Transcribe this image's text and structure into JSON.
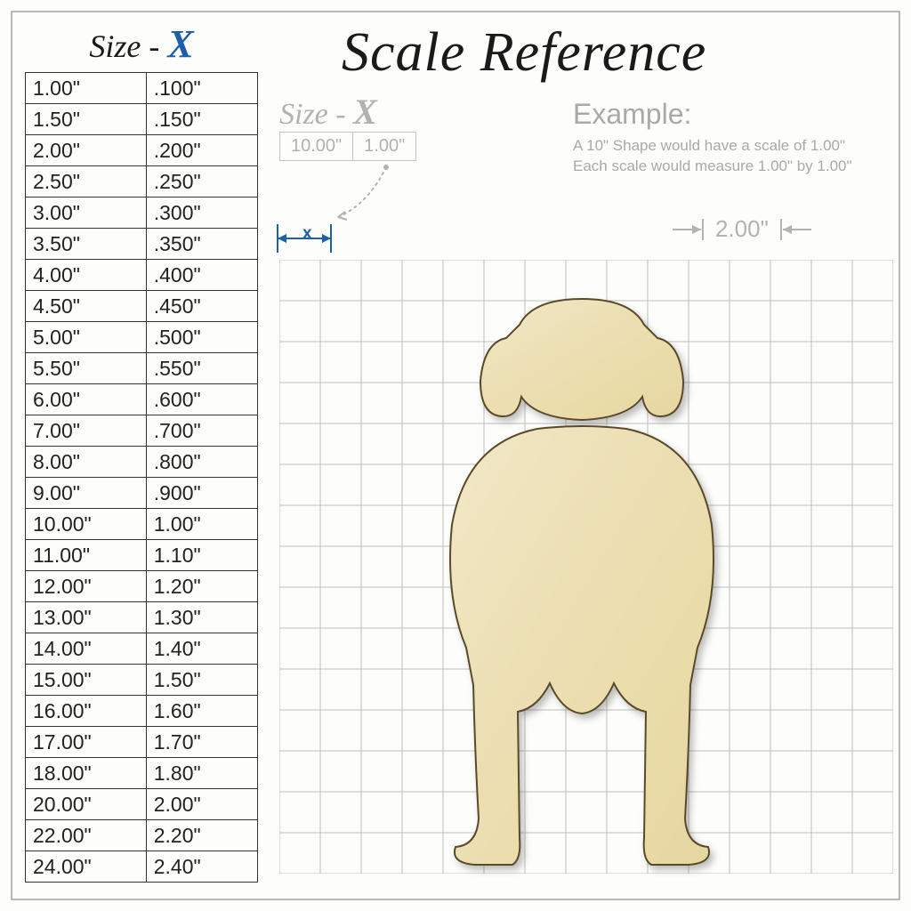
{
  "title": "Scale Reference",
  "size_header": {
    "prefix": "Size - ",
    "x": "X",
    "x_color": "#1e5fa8"
  },
  "sub_size": {
    "prefix": "Size - ",
    "x": "X",
    "color": "#b2b2b2"
  },
  "mini_table": {
    "left": "10.00\"",
    "right": "1.00\""
  },
  "example": {
    "title": "Example:",
    "line1": "A 10\" Shape would have a scale of 1.00\"",
    "line2": "Each scale would measure 1.00\" by 1.00\""
  },
  "x_marker_label": "x",
  "dim2_label": "2.00\"",
  "size_table": {
    "rows": [
      [
        "1.00\"",
        ".100\""
      ],
      [
        "1.50\"",
        ".150\""
      ],
      [
        "2.00\"",
        ".200\""
      ],
      [
        "2.50\"",
        ".250\""
      ],
      [
        "3.00\"",
        ".300\""
      ],
      [
        "3.50\"",
        ".350\""
      ],
      [
        "4.00\"",
        ".400\""
      ],
      [
        "4.50\"",
        ".450\""
      ],
      [
        "5.00\"",
        ".500\""
      ],
      [
        "5.50\"",
        ".550\""
      ],
      [
        "6.00\"",
        ".600\""
      ],
      [
        "7.00\"",
        ".700\""
      ],
      [
        "8.00\"",
        ".800\""
      ],
      [
        "9.00\"",
        ".900\""
      ],
      [
        "10.00\"",
        "1.00\""
      ],
      [
        "11.00\"",
        "1.10\""
      ],
      [
        "12.00\"",
        "1.20\""
      ],
      [
        "13.00\"",
        "1.30\""
      ],
      [
        "14.00\"",
        "1.40\""
      ],
      [
        "15.00\"",
        "1.50\""
      ],
      [
        "16.00\"",
        "1.60\""
      ],
      [
        "17.00\"",
        "1.70\""
      ],
      [
        "18.00\"",
        "1.80\""
      ],
      [
        "20.00\"",
        "2.00\""
      ],
      [
        "22.00\"",
        "2.20\""
      ],
      [
        "24.00\"",
        "2.40\""
      ]
    ]
  },
  "grid": {
    "cell": 46,
    "cols": 15,
    "rows": 15,
    "line_color": "#bfbfbf",
    "bold_every": 2
  },
  "colors": {
    "accent": "#1e5fa8",
    "muted": "#b2b2b2",
    "border": "#333333",
    "wood_fill": "#ede0b8",
    "wood_stroke": "#5a4a2a",
    "background": "#fdfdfb"
  },
  "shape": {
    "type": "silhouette",
    "description": "dog-back-view"
  }
}
